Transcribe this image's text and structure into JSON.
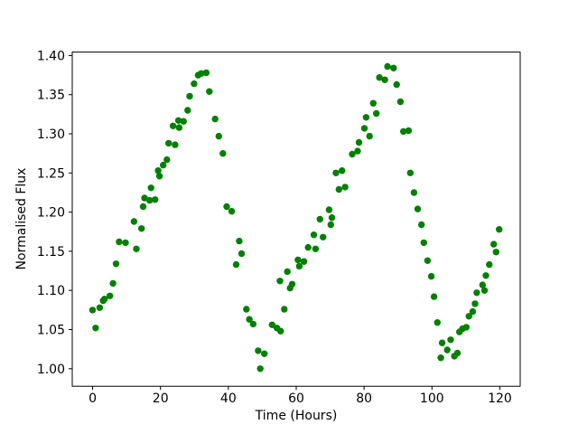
{
  "figure": {
    "background_color": "#ffffff",
    "text_color": "#000000",
    "frame_color": "#000000"
  },
  "chart_data": {
    "type": "scatter",
    "title": "",
    "xlabel": "Time (Hours)",
    "ylabel": "Normalised Flux",
    "legend": null,
    "grid": false,
    "marker": "circle",
    "marker_color": "#008000",
    "marker_radius_px": 3.7,
    "xlim": [
      -6,
      126
    ],
    "ylim": [
      0.9776,
      1.4044
    ],
    "xticks": [
      0,
      20,
      40,
      60,
      80,
      100,
      120
    ],
    "xtick_labels": [
      "0",
      "20",
      "40",
      "60",
      "80",
      "100",
      "120"
    ],
    "yticks": [
      1.0,
      1.05,
      1.1,
      1.15,
      1.2,
      1.25,
      1.3,
      1.35,
      1.4
    ],
    "ytick_labels": [
      "1.00",
      "1.05",
      "1.10",
      "1.15",
      "1.20",
      "1.25",
      "1.30",
      "1.35",
      "1.40"
    ],
    "points": [
      [
        0.0,
        1.075
      ],
      [
        0.9,
        1.052
      ],
      [
        2.1,
        1.078
      ],
      [
        3.1,
        1.087
      ],
      [
        3.5,
        1.089
      ],
      [
        5.1,
        1.093
      ],
      [
        6.0,
        1.109
      ],
      [
        6.9,
        1.134
      ],
      [
        7.8,
        1.162
      ],
      [
        9.7,
        1.161
      ],
      [
        12.2,
        1.188
      ],
      [
        12.9,
        1.153
      ],
      [
        14.4,
        1.179
      ],
      [
        14.9,
        1.207
      ],
      [
        15.3,
        1.218
      ],
      [
        16.8,
        1.215
      ],
      [
        17.2,
        1.231
      ],
      [
        18.4,
        1.216
      ],
      [
        19.3,
        1.253
      ],
      [
        19.7,
        1.246
      ],
      [
        20.8,
        1.26
      ],
      [
        21.9,
        1.267
      ],
      [
        22.4,
        1.288
      ],
      [
        23.7,
        1.31
      ],
      [
        24.3,
        1.286
      ],
      [
        25.3,
        1.317
      ],
      [
        25.5,
        1.308
      ],
      [
        26.8,
        1.316
      ],
      [
        28.0,
        1.33
      ],
      [
        28.6,
        1.348
      ],
      [
        29.9,
        1.364
      ],
      [
        31.1,
        1.375
      ],
      [
        32.0,
        1.377
      ],
      [
        33.5,
        1.378
      ],
      [
        34.4,
        1.354
      ],
      [
        36.1,
        1.319
      ],
      [
        37.2,
        1.297
      ],
      [
        38.4,
        1.275
      ],
      [
        39.5,
        1.207
      ],
      [
        41.0,
        1.201
      ],
      [
        42.3,
        1.133
      ],
      [
        43.2,
        1.163
      ],
      [
        43.9,
        1.147
      ],
      [
        45.3,
        1.076
      ],
      [
        46.2,
        1.063
      ],
      [
        47.3,
        1.057
      ],
      [
        48.8,
        1.023
      ],
      [
        49.4,
        1.0
      ],
      [
        50.6,
        1.019
      ],
      [
        52.9,
        1.056
      ],
      [
        54.3,
        1.052
      ],
      [
        55.2,
        1.112
      ],
      [
        55.4,
        1.048
      ],
      [
        56.5,
        1.076
      ],
      [
        57.4,
        1.124
      ],
      [
        58.2,
        1.103
      ],
      [
        58.8,
        1.108
      ],
      [
        60.5,
        1.139
      ],
      [
        60.9,
        1.131
      ],
      [
        62.3,
        1.137
      ],
      [
        63.5,
        1.155
      ],
      [
        65.2,
        1.171
      ],
      [
        65.7,
        1.153
      ],
      [
        67.0,
        1.191
      ],
      [
        67.9,
        1.168
      ],
      [
        69.7,
        1.203
      ],
      [
        70.2,
        1.184
      ],
      [
        70.5,
        1.193
      ],
      [
        71.7,
        1.25
      ],
      [
        72.6,
        1.229
      ],
      [
        73.5,
        1.253
      ],
      [
        74.4,
        1.232
      ],
      [
        76.5,
        1.274
      ],
      [
        78.1,
        1.278
      ],
      [
        78.5,
        1.289
      ],
      [
        80.1,
        1.307
      ],
      [
        80.6,
        1.321
      ],
      [
        81.6,
        1.297
      ],
      [
        82.7,
        1.339
      ],
      [
        83.6,
        1.326
      ],
      [
        84.5,
        1.372
      ],
      [
        86.1,
        1.369
      ],
      [
        86.9,
        1.386
      ],
      [
        88.7,
        1.384
      ],
      [
        89.6,
        1.363
      ],
      [
        90.7,
        1.341
      ],
      [
        91.6,
        1.303
      ],
      [
        93.1,
        1.304
      ],
      [
        93.6,
        1.25
      ],
      [
        94.7,
        1.225
      ],
      [
        95.8,
        1.204
      ],
      [
        96.9,
        1.184
      ],
      [
        97.6,
        1.161
      ],
      [
        98.7,
        1.138
      ],
      [
        99.8,
        1.118
      ],
      [
        100.6,
        1.092
      ],
      [
        101.6,
        1.059
      ],
      [
        102.6,
        1.014
      ],
      [
        103.0,
        1.033
      ],
      [
        104.5,
        1.024
      ],
      [
        105.5,
        1.037
      ],
      [
        106.6,
        1.016
      ],
      [
        107.5,
        1.02
      ],
      [
        108.1,
        1.047
      ],
      [
        109.0,
        1.051
      ],
      [
        110.1,
        1.053
      ],
      [
        110.9,
        1.067
      ],
      [
        112.0,
        1.073
      ],
      [
        112.7,
        1.083
      ],
      [
        113.2,
        1.097
      ],
      [
        114.9,
        1.107
      ],
      [
        115.5,
        1.1
      ],
      [
        115.9,
        1.119
      ],
      [
        116.9,
        1.133
      ],
      [
        118.2,
        1.159
      ],
      [
        118.9,
        1.149
      ],
      [
        119.8,
        1.178
      ]
    ]
  }
}
